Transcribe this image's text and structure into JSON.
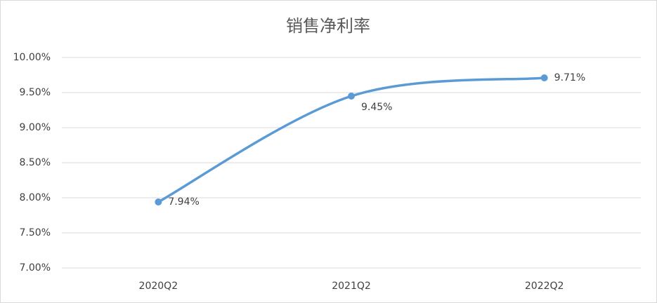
{
  "chart_data": {
    "type": "line",
    "title": "销售净利率",
    "categories": [
      "2020Q2",
      "2021Q2",
      "2022Q2"
    ],
    "series": [
      {
        "name": "销售净利率",
        "color": "#5b9bd5",
        "values": [
          7.94,
          9.45,
          9.71
        ],
        "value_labels": [
          "7.94%",
          "9.45%",
          "9.71%"
        ]
      }
    ],
    "ylim": [
      7,
      10
    ],
    "yticks": [
      {
        "value": 7,
        "label": "7.00%"
      },
      {
        "value": 7.5,
        "label": "7.50%"
      },
      {
        "value": 8,
        "label": "8.00%"
      },
      {
        "value": 8.5,
        "label": "8.50%"
      },
      {
        "value": 9,
        "label": "9.00%"
      },
      {
        "value": 9.5,
        "label": "9.50%"
      },
      {
        "value": 10,
        "label": "10.00%"
      }
    ],
    "grid": true,
    "smooth": true
  }
}
